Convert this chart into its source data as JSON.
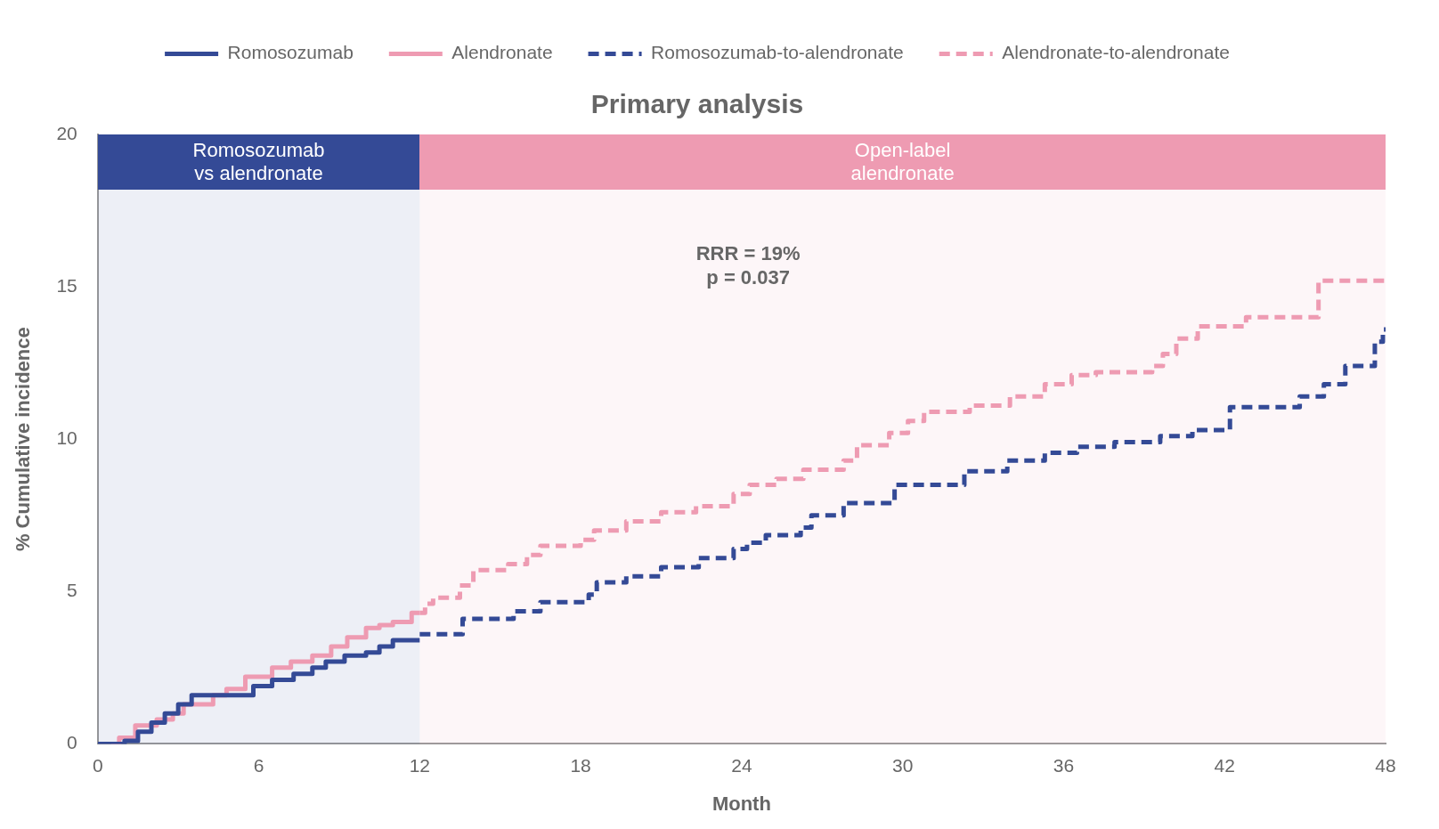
{
  "chart_data": {
    "type": "step",
    "title": "Primary analysis",
    "xlabel": "Month",
    "ylabel": "% Cumulative incidence",
    "xlim": [
      0,
      48
    ],
    "xticks": [
      0,
      6,
      12,
      18,
      24,
      30,
      36,
      42,
      48
    ],
    "ylim": [
      0,
      20
    ],
    "yticks": [
      0,
      5,
      10,
      15,
      20
    ],
    "grid": false,
    "legend": "top",
    "marker": "none",
    "bands": [
      {
        "axis": "x",
        "from": 0,
        "to": 12,
        "label": "Romosozumab\nvs alendronate",
        "color": "#344a96"
      },
      {
        "axis": "x",
        "from": 12,
        "to": 48,
        "label": "Open-label\nalendronate",
        "color": "#ee9bb2"
      }
    ],
    "annotations": [
      "RRR = 19%\np = 0.037"
    ],
    "series": [
      {
        "name": "Romosozumab",
        "color": "#344a96",
        "line_style": "solid",
        "x": [
          0,
          1,
          1.5,
          2,
          2.5,
          3,
          3.5,
          5.8,
          6.5,
          7.3,
          8,
          8.5,
          9.2,
          10,
          10.5,
          11,
          12
        ],
        "values": [
          0,
          0.1,
          0.4,
          0.7,
          1,
          1.3,
          1.6,
          1.9,
          2.1,
          2.3,
          2.5,
          2.7,
          2.9,
          3,
          3.2,
          3.4,
          3.4
        ]
      },
      {
        "name": "Alendronate",
        "color": "#ee9bb2",
        "line_style": "solid",
        "x": [
          0.5,
          0.8,
          1.4,
          2.2,
          2.8,
          3.2,
          4.3,
          4.8,
          5.5,
          6.5,
          7.2,
          8,
          8.7,
          9.3,
          10,
          10.5,
          11,
          11.7,
          12
        ],
        "values": [
          0,
          0.2,
          0.6,
          0.8,
          1,
          1.3,
          1.6,
          1.8,
          2.2,
          2.5,
          2.7,
          2.9,
          3.2,
          3.5,
          3.8,
          3.9,
          4,
          4.3,
          4.3
        ]
      },
      {
        "name": "Romosozumab-to-alendronate",
        "color": "#344a96",
        "line_style": "dashed",
        "x": [
          12,
          13.6,
          15.5,
          16.5,
          18.3,
          18.6,
          19.7,
          21,
          22.4,
          23.7,
          24.2,
          24.9,
          26.2,
          26.6,
          27.8,
          29.7,
          32.3,
          33.9,
          35.3,
          36.5,
          37.9,
          39.6,
          40.8,
          42.2,
          44.8,
          45.7,
          46.5,
          47.6,
          47.9,
          48
        ],
        "values": [
          3.6,
          4.1,
          4.35,
          4.65,
          4.9,
          5.3,
          5.5,
          5.8,
          6.1,
          6.4,
          6.6,
          6.85,
          7.1,
          7.5,
          7.9,
          8.5,
          8.95,
          9.3,
          9.55,
          9.75,
          9.9,
          10.1,
          10.3,
          11.05,
          11.4,
          11.8,
          12.4,
          13.2,
          13.6,
          13.6
        ]
      },
      {
        "name": "Alendronate-to-alendronate",
        "color": "#ee9bb2",
        "line_style": "dashed",
        "x": [
          12,
          12.2,
          12.5,
          13.5,
          14,
          15.3,
          16,
          16.5,
          18,
          18.5,
          19.7,
          21,
          22.3,
          23.7,
          24.3,
          25.3,
          26.3,
          27.8,
          28.3,
          29.5,
          30.2,
          30.8,
          32.5,
          34,
          35.3,
          36.3,
          37.2,
          39.3,
          39.7,
          40.2,
          41,
          42.8,
          45.5,
          48
        ],
        "values": [
          4.3,
          4.6,
          4.8,
          5.2,
          5.7,
          5.9,
          6.2,
          6.5,
          6.7,
          7,
          7.3,
          7.6,
          7.8,
          8.2,
          8.5,
          8.7,
          9,
          9.3,
          9.8,
          10.2,
          10.6,
          10.9,
          11.1,
          11.4,
          11.8,
          12.1,
          12.2,
          12.4,
          12.8,
          13.3,
          13.7,
          14,
          15.2,
          15.2
        ]
      }
    ]
  }
}
